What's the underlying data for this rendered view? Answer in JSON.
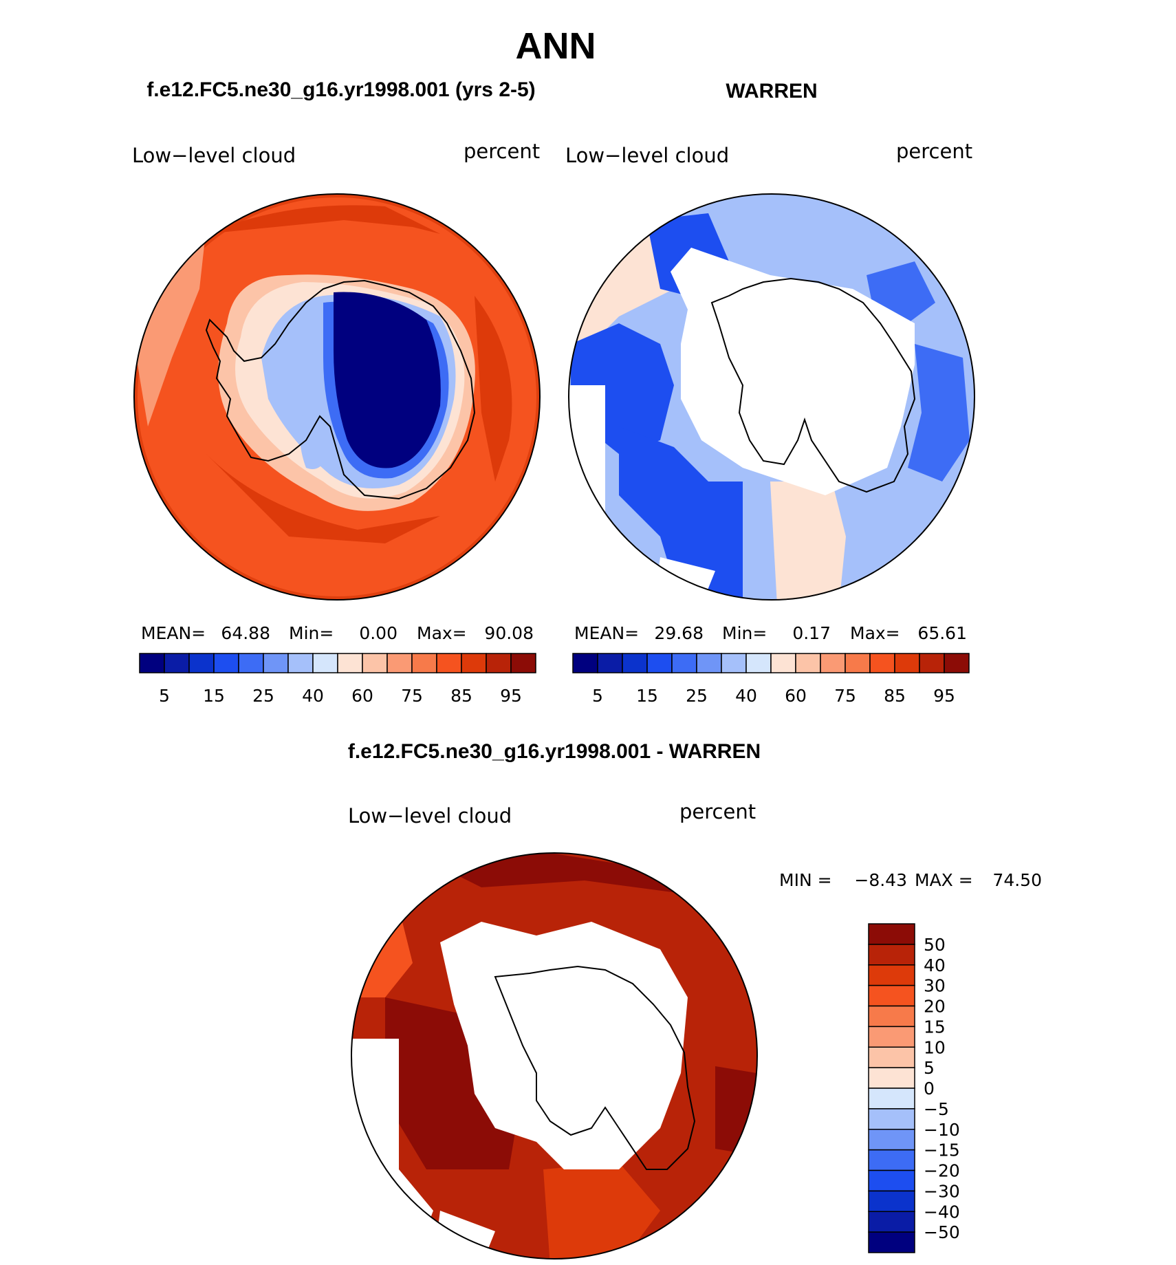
{
  "figure": {
    "title": "ANN",
    "panels": [
      {
        "heading": "f.e12.FC5.ne30_g16.yr1998.001 (yrs 2-5)",
        "field": "Low−level cloud",
        "units": "percent",
        "stats": {
          "mean_label": "MEAN=",
          "mean": "64.88",
          "min_label": "Min=",
          "min": "0.00",
          "max_label": "Max=",
          "max": "90.08"
        }
      },
      {
        "heading": "WARREN",
        "field": "Low−level cloud",
        "units": "percent",
        "stats": {
          "mean_label": "MEAN=",
          "mean": "29.68",
          "min_label": "Min=",
          "min": "0.17",
          "max_label": "Max=",
          "max": "65.61"
        }
      },
      {
        "heading": "f.e12.FC5.ne30_g16.yr1998.001 - WARREN",
        "field": "Low−level cloud",
        "units": "percent",
        "stats": {
          "min_label": "MIN =",
          "min": "−8.43",
          "max_label": "MAX =",
          "max": "74.50"
        }
      }
    ]
  },
  "chart_data": [
    {
      "type": "heatmap",
      "projection": "south polar stereographic",
      "title": "f.e12.FC5.ne30_g16.yr1998.001 (yrs 2-5)",
      "field": "Low−level cloud",
      "units": "percent",
      "mean": 64.88,
      "min": 0.0,
      "max": 90.08,
      "colorbar": {
        "orientation": "horizontal",
        "tick_labels": [
          "5",
          "15",
          "25",
          "40",
          "60",
          "75",
          "85",
          "95"
        ],
        "colors": [
          "#00007f",
          "#0a1ca6",
          "#0b33cc",
          "#1d4ef0",
          "#3d6cf5",
          "#6f95f7",
          "#a5c0fa",
          "#d5e6fc",
          "#fde3d4",
          "#fcc4a8",
          "#fa9a74",
          "#f77a4a",
          "#f5531f",
          "#dd3a0a",
          "#b82308",
          "#8c0c06"
        ]
      }
    },
    {
      "type": "heatmap",
      "projection": "south polar stereographic",
      "title": "WARREN",
      "field": "Low−level cloud",
      "units": "percent",
      "mean": 29.68,
      "min": 0.17,
      "max": 65.61,
      "colorbar": {
        "orientation": "horizontal",
        "tick_labels": [
          "5",
          "15",
          "25",
          "40",
          "60",
          "75",
          "85",
          "95"
        ],
        "colors": [
          "#00007f",
          "#0a1ca6",
          "#0b33cc",
          "#1d4ef0",
          "#3d6cf5",
          "#6f95f7",
          "#a5c0fa",
          "#d5e6fc",
          "#fde3d4",
          "#fcc4a8",
          "#fa9a74",
          "#f77a4a",
          "#f5531f",
          "#dd3a0a",
          "#b82308",
          "#8c0c06"
        ]
      }
    },
    {
      "type": "heatmap",
      "projection": "south polar stereographic",
      "title": "f.e12.FC5.ne30_g16.yr1998.001 - WARREN",
      "field": "Low−level cloud",
      "units": "percent",
      "min": -8.43,
      "max": 74.5,
      "colorbar": {
        "orientation": "vertical",
        "tick_labels": [
          "50",
          "40",
          "30",
          "20",
          "15",
          "10",
          "5",
          "0",
          "−5",
          "−10",
          "−15",
          "−20",
          "−30",
          "−40",
          "−50"
        ],
        "colors": [
          "#8c0c06",
          "#b82308",
          "#dd3a0a",
          "#f5531f",
          "#f77a4a",
          "#fa9a74",
          "#fcc4a8",
          "#fde3d4",
          "#d5e6fc",
          "#a5c0fa",
          "#6f95f7",
          "#3d6cf5",
          "#1d4ef0",
          "#0b33cc",
          "#0a1ca6",
          "#00007f"
        ]
      }
    }
  ]
}
